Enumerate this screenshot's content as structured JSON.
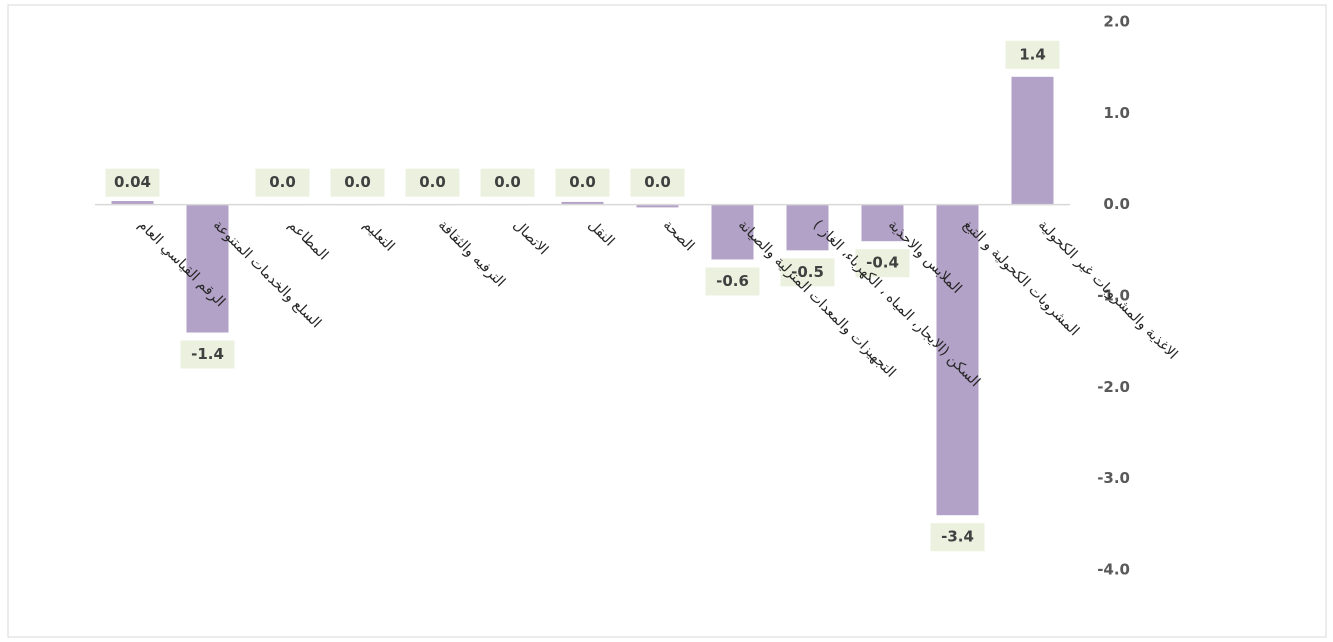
{
  "chart_data": {
    "type": "bar",
    "categories": [
      "الاغذية والمشروبات غير الكحولية",
      "المشروبات الكحولية و التبغ",
      "الملابس والاحذية",
      "السكن (الايجار، المياه ، الكهرباء، الغاز )",
      "التجهيزات والمعدات المنزلية والصيانة",
      "الصحة",
      "النقل",
      "الاتصال",
      "الترفيه والثقافة",
      "التعليم",
      "المطاعم",
      "السلع والخدمات المتنوعة",
      "الرقم القياسي العام"
    ],
    "values": [
      1.4,
      -3.4,
      -0.4,
      -0.5,
      -0.6,
      -0.03,
      0.03,
      0,
      0,
      0,
      0,
      -1.4,
      0.04
    ],
    "value_labels": [
      "1.4",
      "-3.4",
      "-0.4",
      "-0.5",
      "-0.6",
      "0.0",
      "0.0",
      "0.0",
      "0.0",
      "0.0",
      "0.0",
      "-1.4",
      "0.04"
    ],
    "color": "#b3a2c7",
    "x_reversed": true,
    "y_axis_side": "right",
    "ylim": [
      -4,
      2
    ],
    "yticks": [
      {
        "value": 2,
        "label": "2.0"
      },
      {
        "value": 1,
        "label": "1.0"
      },
      {
        "value": 0,
        "label": "0.0"
      },
      {
        "value": -1,
        "label": "-1.0"
      },
      {
        "value": -2,
        "label": "-2.0"
      },
      {
        "value": -3,
        "label": "-3.0"
      },
      {
        "value": -4,
        "label": "-4.0"
      }
    ],
    "grid": false
  }
}
